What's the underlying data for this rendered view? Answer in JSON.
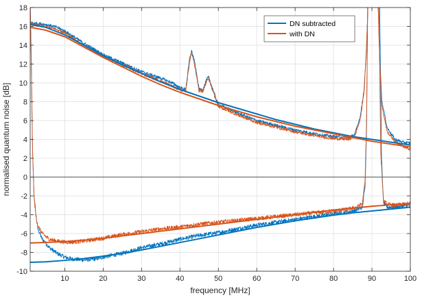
{
  "chart_data": {
    "type": "line",
    "title": "",
    "xlabel": "frequency [MHz]",
    "ylabel": "normalised quantum noise [dB]",
    "xlim": [
      1,
      100
    ],
    "ylim": [
      -10,
      18
    ],
    "x_ticks": [
      10,
      20,
      30,
      40,
      50,
      60,
      70,
      80,
      90,
      100
    ],
    "y_ticks": [
      -10,
      -8,
      -6,
      -4,
      -2,
      0,
      2,
      4,
      6,
      8,
      10,
      12,
      14,
      16,
      18
    ],
    "grid": true,
    "legend_position": "top-right",
    "series": [
      {
        "name": "DN subtracted",
        "color": "#0072BD",
        "role": "antisqueezing-noisy",
        "points": [
          [
            1,
            16.4
          ],
          [
            3,
            16.3
          ],
          [
            5,
            16.2
          ],
          [
            8,
            15.9
          ],
          [
            10,
            15.5
          ],
          [
            15,
            14.2
          ],
          [
            20,
            13.0
          ],
          [
            25,
            12.1
          ],
          [
            30,
            11.2
          ],
          [
            35,
            10.5
          ],
          [
            38,
            10.0
          ],
          [
            40,
            9.5
          ],
          [
            41.5,
            9.3
          ],
          [
            42.5,
            12.5
          ],
          [
            43,
            13.4
          ],
          [
            43.7,
            12.5
          ],
          [
            45,
            9.3
          ],
          [
            46,
            9.3
          ],
          [
            47,
            10.4
          ],
          [
            47.5,
            10.6
          ],
          [
            48,
            10.0
          ],
          [
            49,
            8.8
          ],
          [
            50,
            7.7
          ],
          [
            55,
            6.8
          ],
          [
            60,
            6.0
          ],
          [
            65,
            5.5
          ],
          [
            70,
            5.0
          ],
          [
            75,
            4.6
          ],
          [
            80,
            4.3
          ],
          [
            84,
            4.2
          ],
          [
            85.5,
            4.5
          ],
          [
            87,
            6.5
          ],
          [
            88,
            9.5
          ],
          [
            88.6,
            14.0
          ],
          [
            89,
            18.5
          ],
          [
            91.6,
            18.5
          ],
          [
            92,
            13.0
          ],
          [
            92.6,
            8.0
          ],
          [
            94,
            5.2
          ],
          [
            96,
            4.0
          ],
          [
            98,
            3.7
          ],
          [
            100,
            3.6
          ]
        ]
      },
      {
        "name": "with DN",
        "color": "#D95319",
        "role": "antisqueezing-noisy",
        "points": [
          [
            1,
            16.3
          ],
          [
            3,
            16.1
          ],
          [
            5,
            16.0
          ],
          [
            8,
            15.7
          ],
          [
            10,
            15.3
          ],
          [
            15,
            14.0
          ],
          [
            20,
            12.8
          ],
          [
            25,
            11.9
          ],
          [
            30,
            11.0
          ],
          [
            35,
            10.2
          ],
          [
            40,
            9.3
          ],
          [
            41.5,
            9.1
          ],
          [
            42.5,
            12.2
          ],
          [
            43,
            13.2
          ],
          [
            43.7,
            12.2
          ],
          [
            45,
            9.1
          ],
          [
            46,
            9.1
          ],
          [
            47,
            10.2
          ],
          [
            47.5,
            10.4
          ],
          [
            48,
            9.8
          ],
          [
            49,
            8.6
          ],
          [
            50,
            7.5
          ],
          [
            55,
            6.6
          ],
          [
            60,
            5.8
          ],
          [
            65,
            5.3
          ],
          [
            70,
            4.8
          ],
          [
            75,
            4.4
          ],
          [
            80,
            4.1
          ],
          [
            84,
            4.0
          ],
          [
            85.5,
            4.3
          ],
          [
            87,
            6.2
          ],
          [
            88,
            9.2
          ],
          [
            88.6,
            14.0
          ],
          [
            89,
            18.5
          ],
          [
            91.6,
            18.5
          ],
          [
            92,
            12.5
          ],
          [
            92.6,
            7.5
          ],
          [
            94,
            4.8
          ],
          [
            96,
            3.8
          ],
          [
            98,
            3.3
          ],
          [
            100,
            2.9
          ]
        ]
      },
      {
        "name": "",
        "color": "#0072BD",
        "role": "antisqueezing-fit",
        "points": [
          [
            1,
            16.2
          ],
          [
            5,
            15.9
          ],
          [
            10,
            15.1
          ],
          [
            15,
            14.0
          ],
          [
            20,
            12.9
          ],
          [
            25,
            11.9
          ],
          [
            30,
            11.0
          ],
          [
            35,
            10.1
          ],
          [
            40,
            9.3
          ],
          [
            45,
            8.6
          ],
          [
            50,
            7.9
          ],
          [
            55,
            7.3
          ],
          [
            60,
            6.7
          ],
          [
            65,
            6.1
          ],
          [
            70,
            5.6
          ],
          [
            75,
            5.1
          ],
          [
            80,
            4.7
          ],
          [
            85,
            4.3
          ],
          [
            90,
            4.0
          ],
          [
            95,
            3.7
          ],
          [
            100,
            3.4
          ]
        ]
      },
      {
        "name": "",
        "color": "#D95319",
        "role": "antisqueezing-fit",
        "points": [
          [
            1,
            15.9
          ],
          [
            5,
            15.6
          ],
          [
            10,
            14.9
          ],
          [
            15,
            13.8
          ],
          [
            20,
            12.7
          ],
          [
            25,
            11.7
          ],
          [
            30,
            10.7
          ],
          [
            35,
            9.8
          ],
          [
            40,
            9.0
          ],
          [
            45,
            8.3
          ],
          [
            50,
            7.6
          ],
          [
            55,
            7.0
          ],
          [
            60,
            6.4
          ],
          [
            65,
            5.9
          ],
          [
            70,
            5.4
          ],
          [
            75,
            5.0
          ],
          [
            80,
            4.6
          ],
          [
            85,
            4.2
          ],
          [
            90,
            3.8
          ],
          [
            95,
            3.5
          ],
          [
            100,
            3.2
          ]
        ]
      },
      {
        "name": "",
        "color": "#0072BD",
        "role": "squeezing-noisy",
        "points": [
          [
            1,
            18.5
          ],
          [
            1.3,
            12.0
          ],
          [
            1.6,
            3.0
          ],
          [
            2,
            -2.0
          ],
          [
            2.5,
            -4.0
          ],
          [
            3,
            -5.5
          ],
          [
            4,
            -6.5
          ],
          [
            5,
            -7.0
          ],
          [
            6,
            -7.5
          ],
          [
            8,
            -8.1
          ],
          [
            10,
            -8.5
          ],
          [
            12,
            -8.7
          ],
          [
            15,
            -8.8
          ],
          [
            18,
            -8.7
          ],
          [
            20,
            -8.5
          ],
          [
            25,
            -8.1
          ],
          [
            30,
            -7.5
          ],
          [
            35,
            -7.1
          ],
          [
            40,
            -6.6
          ],
          [
            45,
            -6.2
          ],
          [
            50,
            -5.9
          ],
          [
            55,
            -5.5
          ],
          [
            60,
            -5.1
          ],
          [
            65,
            -4.8
          ],
          [
            70,
            -4.5
          ],
          [
            75,
            -4.2
          ],
          [
            80,
            -3.9
          ],
          [
            84,
            -3.7
          ],
          [
            86,
            -3.5
          ],
          [
            87.5,
            -3.2
          ],
          [
            88.2,
            -1.0
          ],
          [
            88.6,
            5.0
          ],
          [
            88.9,
            18.5
          ],
          [
            92,
            18.5
          ],
          [
            92.5,
            2.0
          ],
          [
            93,
            -2.8
          ],
          [
            94,
            -3.2
          ],
          [
            96,
            -3.2
          ],
          [
            98,
            -3.1
          ],
          [
            100,
            -3.0
          ]
        ]
      },
      {
        "name": "",
        "color": "#D95319",
        "role": "squeezing-noisy",
        "points": [
          [
            1,
            18.5
          ],
          [
            1.3,
            12.0
          ],
          [
            1.6,
            3.0
          ],
          [
            2,
            -2.0
          ],
          [
            2.5,
            -4.2
          ],
          [
            3,
            -5.2
          ],
          [
            4,
            -5.9
          ],
          [
            5,
            -6.3
          ],
          [
            6,
            -6.6
          ],
          [
            8,
            -6.8
          ],
          [
            10,
            -6.9
          ],
          [
            12,
            -6.9
          ],
          [
            15,
            -6.8
          ],
          [
            18,
            -6.6
          ],
          [
            20,
            -6.5
          ],
          [
            25,
            -6.1
          ],
          [
            30,
            -5.8
          ],
          [
            35,
            -5.5
          ],
          [
            40,
            -5.3
          ],
          [
            45,
            -5.0
          ],
          [
            50,
            -4.8
          ],
          [
            55,
            -4.6
          ],
          [
            60,
            -4.4
          ],
          [
            65,
            -4.2
          ],
          [
            70,
            -4.0
          ],
          [
            75,
            -3.8
          ],
          [
            80,
            -3.6
          ],
          [
            84,
            -3.4
          ],
          [
            86,
            -3.2
          ],
          [
            87.5,
            -2.8
          ],
          [
            88.2,
            -0.5
          ],
          [
            88.6,
            6.0
          ],
          [
            88.9,
            18.5
          ],
          [
            91.8,
            18.5
          ],
          [
            92.3,
            2.5
          ],
          [
            93,
            -2.5
          ],
          [
            94,
            -2.9
          ],
          [
            96,
            -3.0
          ],
          [
            98,
            -2.9
          ],
          [
            100,
            -2.8
          ]
        ]
      },
      {
        "name": "",
        "color": "#0072BD",
        "role": "squeezing-fit",
        "points": [
          [
            1,
            -9.05
          ],
          [
            5,
            -9.0
          ],
          [
            10,
            -8.85
          ],
          [
            15,
            -8.65
          ],
          [
            20,
            -8.4
          ],
          [
            25,
            -8.1
          ],
          [
            30,
            -7.75
          ],
          [
            35,
            -7.35
          ],
          [
            40,
            -6.95
          ],
          [
            45,
            -6.55
          ],
          [
            50,
            -6.15
          ],
          [
            55,
            -5.75
          ],
          [
            60,
            -5.35
          ],
          [
            65,
            -5.0
          ],
          [
            70,
            -4.65
          ],
          [
            75,
            -4.35
          ],
          [
            80,
            -4.05
          ],
          [
            85,
            -3.8
          ],
          [
            90,
            -3.6
          ],
          [
            95,
            -3.4
          ],
          [
            100,
            -3.2
          ]
        ]
      },
      {
        "name": "",
        "color": "#D95319",
        "role": "squeezing-fit",
        "points": [
          [
            1,
            -7.0
          ],
          [
            5,
            -6.95
          ],
          [
            10,
            -6.85
          ],
          [
            15,
            -6.7
          ],
          [
            20,
            -6.5
          ],
          [
            25,
            -6.25
          ],
          [
            30,
            -6.0
          ],
          [
            35,
            -5.75
          ],
          [
            40,
            -5.5
          ],
          [
            45,
            -5.25
          ],
          [
            50,
            -5.0
          ],
          [
            55,
            -4.75
          ],
          [
            60,
            -4.5
          ],
          [
            65,
            -4.25
          ],
          [
            70,
            -4.0
          ],
          [
            75,
            -3.75
          ],
          [
            80,
            -3.5
          ],
          [
            85,
            -3.3
          ],
          [
            90,
            -3.1
          ],
          [
            95,
            -2.95
          ],
          [
            100,
            -2.8
          ]
        ]
      }
    ]
  }
}
